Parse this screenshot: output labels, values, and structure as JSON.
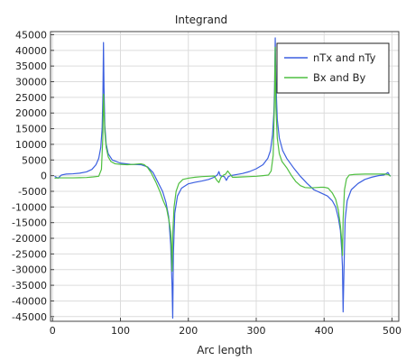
{
  "chart_data": {
    "type": "line",
    "title": "Integrand",
    "xlabel": "Arc length",
    "ylabel": "",
    "xlim": [
      -3,
      510
    ],
    "ylim": [
      -46500,
      46000
    ],
    "xticks": [
      0,
      100,
      200,
      300,
      400,
      500
    ],
    "yticks": [
      -45000,
      -40000,
      -35000,
      -30000,
      -25000,
      -20000,
      -15000,
      -10000,
      -5000,
      0,
      5000,
      10000,
      15000,
      20000,
      25000,
      30000,
      35000,
      40000,
      45000
    ],
    "grid": true,
    "legend_position": "top-right",
    "series": [
      {
        "name": "nTx and nTy",
        "color": "#3b5fe0",
        "points": [
          [
            3,
            -200
          ],
          [
            8,
            -800
          ],
          [
            13,
            200
          ],
          [
            20,
            500
          ],
          [
            30,
            600
          ],
          [
            40,
            800
          ],
          [
            50,
            1200
          ],
          [
            58,
            2000
          ],
          [
            64,
            3500
          ],
          [
            68,
            5500
          ],
          [
            71,
            9000
          ],
          [
            73,
            15000
          ],
          [
            74.2,
            26000
          ],
          [
            75,
            42500
          ],
          [
            75.8,
            28000
          ],
          [
            77,
            16000
          ],
          [
            79,
            10000
          ],
          [
            82,
            7000
          ],
          [
            88,
            5000
          ],
          [
            100,
            4000
          ],
          [
            115,
            3600
          ],
          [
            130,
            3500
          ],
          [
            140,
            2800
          ],
          [
            148,
            1000
          ],
          [
            155,
            -2000
          ],
          [
            162,
            -5000
          ],
          [
            167,
            -8500
          ],
          [
            171,
            -13000
          ],
          [
            174,
            -22000
          ],
          [
            176,
            -35000
          ],
          [
            177,
            -45500
          ],
          [
            178,
            -25000
          ],
          [
            180,
            -12000
          ],
          [
            184,
            -6500
          ],
          [
            190,
            -4000
          ],
          [
            200,
            -2600
          ],
          [
            210,
            -2100
          ],
          [
            220,
            -1700
          ],
          [
            230,
            -1200
          ],
          [
            238,
            -500
          ],
          [
            243,
            300
          ],
          [
            245,
            1300
          ],
          [
            247,
            0
          ],
          [
            250,
            -200
          ],
          [
            253,
            -300
          ],
          [
            256,
            -1500
          ],
          [
            259,
            -300
          ],
          [
            262,
            0
          ],
          [
            270,
            300
          ],
          [
            280,
            700
          ],
          [
            290,
            1300
          ],
          [
            300,
            2200
          ],
          [
            310,
            3500
          ],
          [
            317,
            5500
          ],
          [
            321,
            8000
          ],
          [
            324,
            13000
          ],
          [
            326,
            20000
          ],
          [
            327,
            28000
          ],
          [
            328,
            44000
          ],
          [
            329,
            30000
          ],
          [
            331,
            18000
          ],
          [
            334,
            12000
          ],
          [
            339,
            8000
          ],
          [
            345,
            5500
          ],
          [
            355,
            2500
          ],
          [
            365,
            -200
          ],
          [
            375,
            -2500
          ],
          [
            385,
            -4500
          ],
          [
            395,
            -5500
          ],
          [
            405,
            -6500
          ],
          [
            412,
            -8000
          ],
          [
            417,
            -10000
          ],
          [
            421,
            -13500
          ],
          [
            424,
            -17500
          ],
          [
            426,
            -24000
          ],
          [
            427,
            -29000
          ],
          [
            428,
            -43500
          ],
          [
            429.5,
            -28000
          ],
          [
            431,
            -14000
          ],
          [
            434,
            -8000
          ],
          [
            440,
            -4500
          ],
          [
            450,
            -2500
          ],
          [
            460,
            -1200
          ],
          [
            470,
            -500
          ],
          [
            480,
            0
          ],
          [
            488,
            200
          ],
          [
            492,
            700
          ],
          [
            494,
            1000
          ],
          [
            496,
            300
          ],
          [
            498,
            -200
          ]
        ]
      },
      {
        "name": "Bx and By",
        "color": "#4fbf40",
        "points": [
          [
            3,
            -800
          ],
          [
            10,
            -700
          ],
          [
            20,
            -700
          ],
          [
            30,
            -700
          ],
          [
            40,
            -650
          ],
          [
            50,
            -600
          ],
          [
            60,
            -400
          ],
          [
            68,
            -200
          ],
          [
            72,
            2000
          ],
          [
            74,
            12000
          ],
          [
            75,
            26000
          ],
          [
            76,
            20000
          ],
          [
            77,
            14000
          ],
          [
            79,
            9000
          ],
          [
            82,
            6000
          ],
          [
            86,
            4500
          ],
          [
            92,
            3800
          ],
          [
            100,
            3600
          ],
          [
            110,
            3500
          ],
          [
            120,
            3600
          ],
          [
            130,
            3800
          ],
          [
            135,
            3500
          ],
          [
            140,
            2600
          ],
          [
            145,
            1000
          ],
          [
            152,
            -2000
          ],
          [
            158,
            -5000
          ],
          [
            163,
            -8000
          ],
          [
            168,
            -10500
          ],
          [
            172,
            -15000
          ],
          [
            174,
            -18000
          ],
          [
            175,
            -22000
          ],
          [
            176,
            -30500
          ],
          [
            177,
            -19000
          ],
          [
            179,
            -10000
          ],
          [
            182,
            -5000
          ],
          [
            186,
            -2500
          ],
          [
            192,
            -1200
          ],
          [
            200,
            -800
          ],
          [
            210,
            -500
          ],
          [
            220,
            -300
          ],
          [
            230,
            -200
          ],
          [
            238,
            -100
          ],
          [
            242,
            -1500
          ],
          [
            245,
            -2200
          ],
          [
            248,
            -600
          ],
          [
            252,
            200
          ],
          [
            255,
            500
          ],
          [
            258,
            1500
          ],
          [
            261,
            600
          ],
          [
            265,
            -500
          ],
          [
            270,
            -500
          ],
          [
            280,
            -400
          ],
          [
            290,
            -300
          ],
          [
            300,
            -200
          ],
          [
            310,
            0
          ],
          [
            318,
            200
          ],
          [
            322,
            1500
          ],
          [
            325,
            6500
          ],
          [
            326,
            16000
          ],
          [
            327,
            24500
          ],
          [
            328,
            41000
          ],
          [
            329,
            22000
          ],
          [
            331,
            12000
          ],
          [
            334,
            7000
          ],
          [
            338,
            4500
          ],
          [
            345,
            2500
          ],
          [
            352,
            0
          ],
          [
            358,
            -1800
          ],
          [
            365,
            -3200
          ],
          [
            372,
            -3800
          ],
          [
            380,
            -3900
          ],
          [
            388,
            -3800
          ],
          [
            395,
            -3700
          ],
          [
            400,
            -3700
          ],
          [
            406,
            -4000
          ],
          [
            412,
            -5500
          ],
          [
            417,
            -7500
          ],
          [
            421,
            -11000
          ],
          [
            424,
            -16000
          ],
          [
            426,
            -21000
          ],
          [
            427,
            -25500
          ],
          [
            428,
            -14000
          ],
          [
            430,
            -4500
          ],
          [
            433,
            -1000
          ],
          [
            437,
            200
          ],
          [
            445,
            400
          ],
          [
            460,
            500
          ],
          [
            475,
            500
          ],
          [
            490,
            500
          ],
          [
            495,
            300
          ],
          [
            498,
            -200
          ]
        ]
      }
    ]
  }
}
